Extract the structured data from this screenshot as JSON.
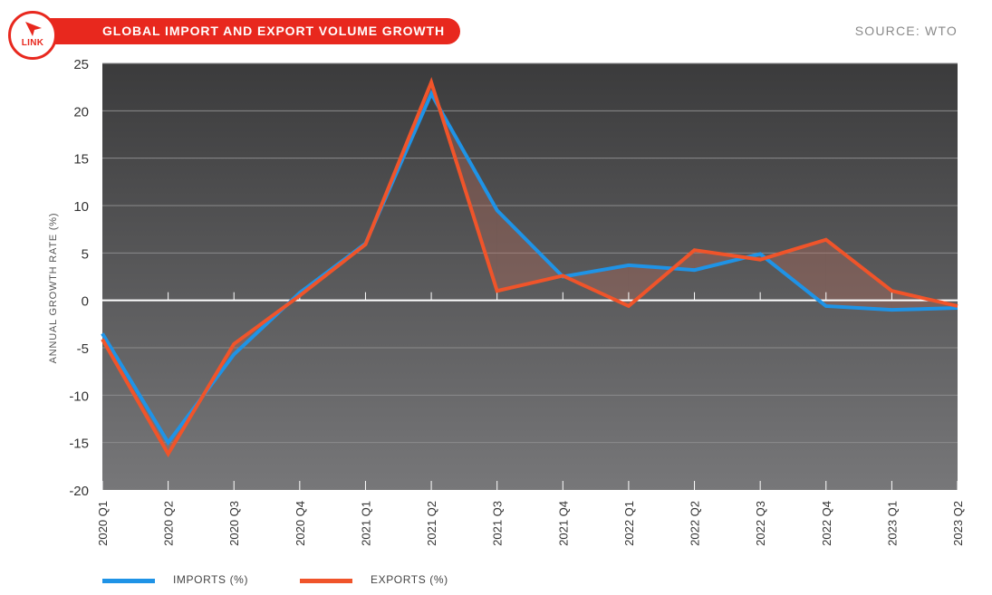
{
  "header": {
    "title": "GLOBAL IMPORT AND EXPORT VOLUME GROWTH",
    "source": "SOURCE: WTO",
    "link_label": "LINK"
  },
  "colors": {
    "accent": "#e8281e",
    "imports": "#1f93e6",
    "exports": "#f0542a"
  },
  "chart_data": {
    "type": "line",
    "title": "GLOBAL IMPORT AND EXPORT VOLUME GROWTH",
    "xlabel": "",
    "ylabel": "ANNUAL GROWTH RATE (%)",
    "ylim": [
      -20,
      25
    ],
    "yticks": [
      25,
      20,
      15,
      10,
      5,
      0,
      -5,
      -10,
      -15,
      -20
    ],
    "ytick_labels": [
      "25",
      "20",
      "15",
      "10",
      "5",
      "0",
      "-5",
      "-10",
      "-15",
      "-20"
    ],
    "grid": true,
    "legend_position": "bottom-left",
    "categories": [
      "2020 Q1",
      "2020 Q2",
      "2020 Q3",
      "2020 Q4",
      "2021 Q1",
      "2021 Q2",
      "2021 Q3",
      "2021 Q4",
      "2022 Q1",
      "2022 Q2",
      "2022 Q3",
      "2022 Q4",
      "2023 Q1",
      "2023 Q2"
    ],
    "series": [
      {
        "name": "IMPORTS (%)",
        "values": [
          -3.5,
          -15,
          -5.7,
          0.8,
          6.0,
          21.8,
          9.5,
          2.5,
          3.7,
          3.2,
          4.9,
          -0.6,
          -1.0,
          -0.8
        ]
      },
      {
        "name": "EXPORTS (%)",
        "values": [
          -4.1,
          -16.2,
          -4.6,
          0.5,
          5.9,
          23.0,
          1.0,
          2.6,
          -0.6,
          5.3,
          4.3,
          6.4,
          1.0,
          -0.6
        ]
      }
    ]
  }
}
